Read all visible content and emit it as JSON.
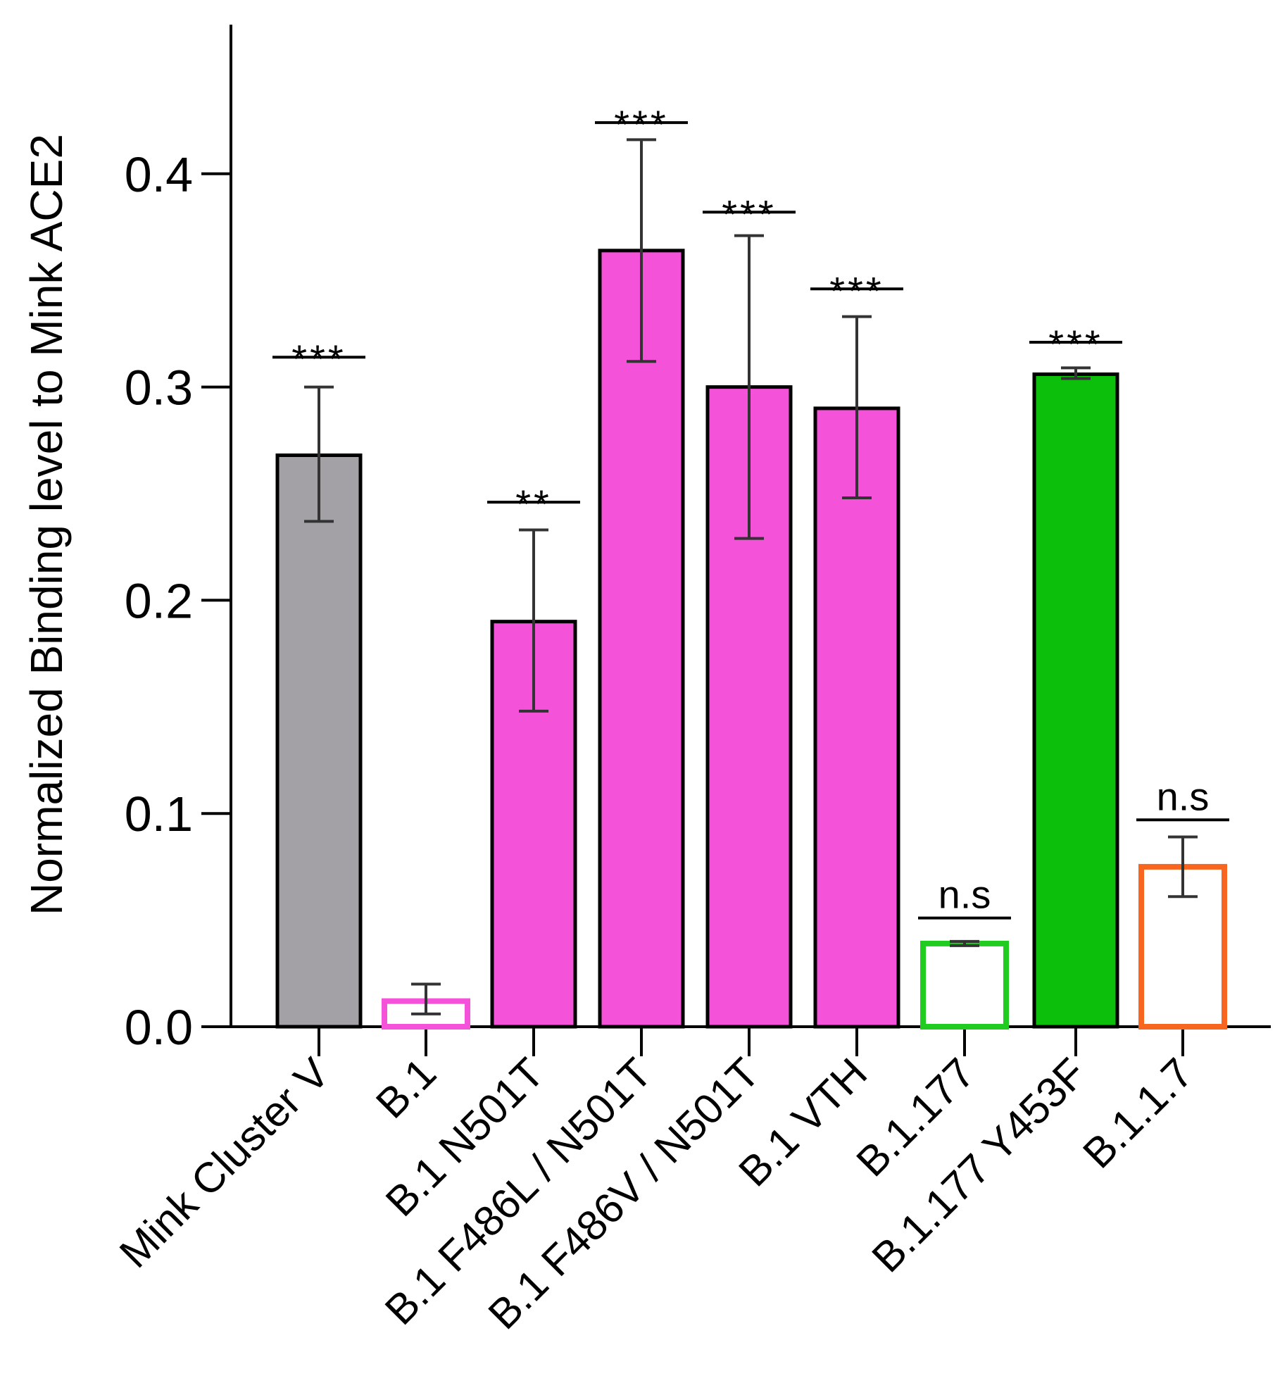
{
  "chart_data": {
    "type": "bar",
    "title": "",
    "xlabel": "",
    "ylabel": "Normalized Binding level to Mink ACE2",
    "ylim": [
      0,
      0.46
    ],
    "yticks": [
      "0.0",
      "0.1",
      "0.2",
      "0.3",
      "0.4"
    ],
    "ytick_values": [
      0.0,
      0.1,
      0.2,
      0.3,
      0.4
    ],
    "grid": false,
    "legend": "none",
    "categories": [
      "Mink Cluster V",
      "B.1",
      "B.1 N501T",
      "B.1 F486L / N501T",
      "B.1 F486V / N501T",
      "B.1 VTH",
      "B.1.177",
      "B.1.177 Y453F",
      "B.1.1.7"
    ],
    "values": [
      0.268,
      0.012,
      0.19,
      0.364,
      0.3,
      0.29,
      0.039,
      0.306,
      0.075
    ],
    "error_low": [
      0.237,
      0.006,
      0.148,
      0.312,
      0.229,
      0.248,
      0.038,
      0.304,
      0.061
    ],
    "error_high": [
      0.3,
      0.02,
      0.233,
      0.416,
      0.371,
      0.333,
      0.04,
      0.309,
      0.089
    ],
    "significance": [
      "***",
      "",
      "**",
      "***",
      "***",
      "***",
      "n.s",
      "***",
      "n.s"
    ],
    "significance_level": [
      0.314,
      null,
      0.246,
      0.424,
      0.382,
      0.346,
      0.051,
      0.321,
      0.097
    ],
    "styles": [
      {
        "fill": "#a3a1a6",
        "stroke": "#000000",
        "style": "filled"
      },
      {
        "fill": "#ffffff",
        "stroke": "#f352d9",
        "style": "outline"
      },
      {
        "fill": "#f352d9",
        "stroke": "#000000",
        "style": "filled"
      },
      {
        "fill": "#f352d9",
        "stroke": "#000000",
        "style": "filled"
      },
      {
        "fill": "#f352d9",
        "stroke": "#000000",
        "style": "filled"
      },
      {
        "fill": "#f352d9",
        "stroke": "#000000",
        "style": "filled"
      },
      {
        "fill": "#ffffff",
        "stroke": "#1fcc1f",
        "style": "outline"
      },
      {
        "fill": "#0bbf0b",
        "stroke": "#000000",
        "style": "filled"
      },
      {
        "fill": "#ffffff",
        "stroke": "#f7651f",
        "style": "outline"
      }
    ]
  }
}
